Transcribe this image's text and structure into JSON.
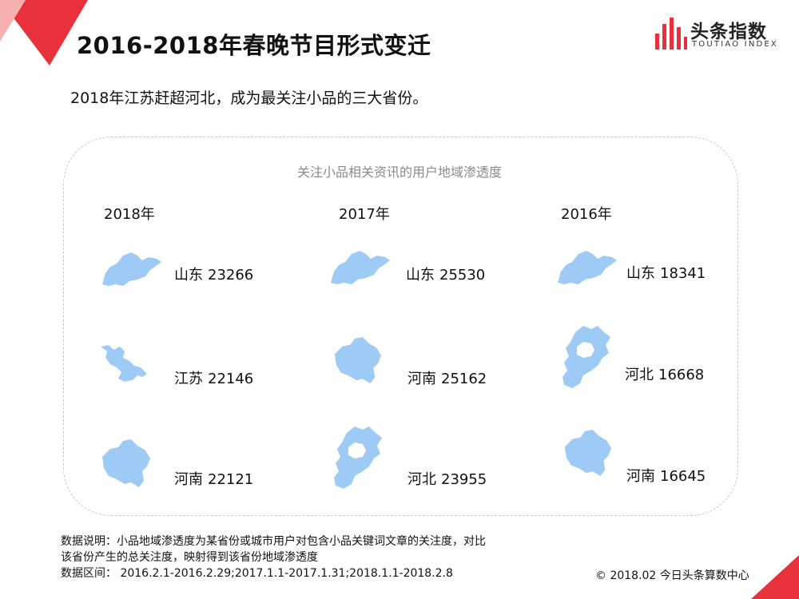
{
  "header": {
    "title": "2016-2018年春晚节目形式变迁",
    "logo_name": "头条指数",
    "logo_sub": "TOUTIAO INDEX"
  },
  "subtitle": "2018年江苏赶超河北，成为最关注小品的三大省份。",
  "panel": {
    "title": "关注小品相关资讯的用户地域渗透度",
    "columns": [
      {
        "year": "2018年",
        "entries": [
          {
            "province": "山东",
            "value": "23266",
            "shape": "shandong"
          },
          {
            "province": "江苏",
            "value": "22146",
            "shape": "jiangsu"
          },
          {
            "province": "河南",
            "value": "22121",
            "shape": "henan"
          }
        ]
      },
      {
        "year": "2017年",
        "entries": [
          {
            "province": "山东",
            "value": "25530",
            "shape": "shandong"
          },
          {
            "province": "河南",
            "value": "25162",
            "shape": "henan"
          },
          {
            "province": "河北",
            "value": "23955",
            "shape": "hebei"
          }
        ]
      },
      {
        "year": "2016年",
        "entries": [
          {
            "province": "山东",
            "value": "18341",
            "shape": "shandong"
          },
          {
            "province": "河北",
            "value": "16668",
            "shape": "hebei"
          },
          {
            "province": "河南",
            "value": "16645",
            "shape": "henan"
          }
        ]
      }
    ]
  },
  "notes": {
    "line1": "数据说明：小品地域渗透度为某省份或城市用户对包含小品关键词文章的关注度，对比",
    "line2": "该省份产生的总关注度，映射得到该省份地域渗透度",
    "line3": "数据区间：  2016.2.1-2016.2.29;2017.1.1-2017.1.31;2018.1.1-2018.2.8"
  },
  "copyright": "© 2018.02 今日头条算数中心",
  "colors": {
    "accent_red": "#e8313a",
    "corner_pink": "#f7a5a5",
    "map_blue": "#9ecbf5",
    "panel_border": "#c8c8c8"
  },
  "icons": [
    "logo-bars-icon",
    "province-map-icon"
  ]
}
